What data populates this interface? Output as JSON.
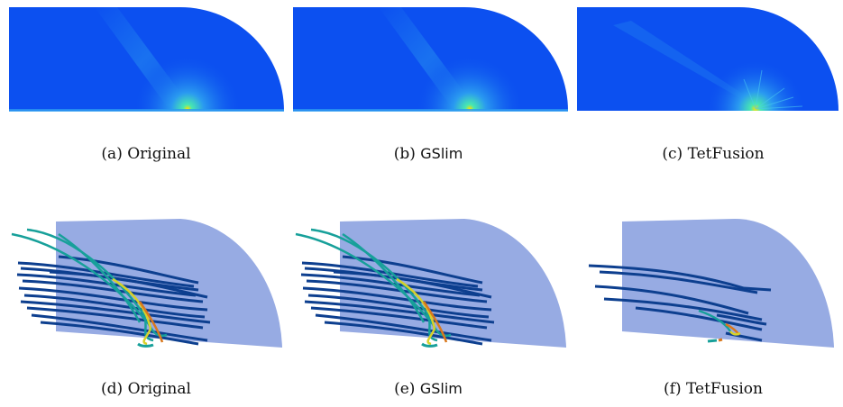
{
  "figure": {
    "captions": [
      {
        "tag": "(a)",
        "label": "Original",
        "sans": false
      },
      {
        "tag": "(b)",
        "label": "GSlim",
        "sans": true
      },
      {
        "tag": "(c)",
        "label": "TetFusion",
        "sans": false
      },
      {
        "tag": "(d)",
        "label": "Original",
        "sans": false
      },
      {
        "tag": "(e)",
        "label": "GSlim",
        "sans": true
      },
      {
        "tag": "(f)",
        "label": "TetFusion",
        "sans": false
      }
    ]
  },
  "colors": {
    "field_base": "#0c50f0",
    "field_light": "#2a9af0",
    "hotspot_core": "#ffe100",
    "hotspot_mid": "#48e8b0",
    "plane_fill": "#97abe3",
    "streamline_dark": "#0d3f8f",
    "streamline_teal": "#17a09a",
    "streamline_yellow": "#d7d12a",
    "streamline_orange": "#d9781d"
  }
}
